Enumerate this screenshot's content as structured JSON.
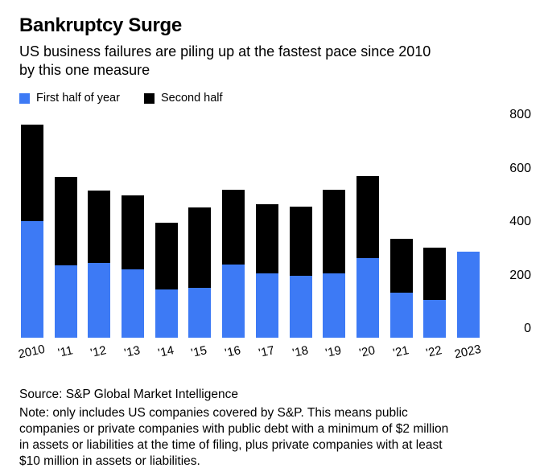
{
  "header": {
    "title": "Bankruptcy Surge",
    "subtitle": "US business failures are piling up at the fastest pace since 2010\nby this one measure"
  },
  "legend": [
    {
      "label": "First half of year",
      "color": "#3d7af5"
    },
    {
      "label": "Second half",
      "color": "#000000"
    }
  ],
  "chart_data": {
    "type": "bar",
    "stacked": true,
    "title": "Bankruptcy Surge",
    "subtitle": "US business failures are piling up at the fastest pace since 2010 by this one measure",
    "categories": [
      "2010",
      "'11",
      "'12",
      "'13",
      "'14",
      "'15",
      "'16",
      "'17",
      "'18",
      "'19",
      "'20",
      "'21",
      "'22",
      "2023"
    ],
    "series": [
      {
        "name": "First half of year",
        "color": "#3d7af5",
        "values": [
          437,
          272,
          281,
          258,
          183,
          188,
          276,
          243,
          232,
          243,
          298,
          170,
          143,
          324
        ]
      },
      {
        "name": "Second half",
        "color": "#000000",
        "values": [
          360,
          330,
          272,
          276,
          248,
          300,
          279,
          258,
          260,
          312,
          308,
          200,
          196,
          0
        ]
      }
    ],
    "ylim": [
      0,
      830
    ],
    "yticks": [
      0,
      200,
      400,
      600,
      800
    ],
    "y_axis_side": "right",
    "grid": false,
    "legend_position": "top-left"
  },
  "footer": {
    "source": "Source: S&P Global Market Intelligence",
    "note": "Note: only includes US companies covered by S&P. This means public\ncompanies or private companies with public debt with a minimum of $2 million\nin assets or liabilities at the time of filing, plus private companies with at least\n$10 million in assets or liabilities."
  }
}
